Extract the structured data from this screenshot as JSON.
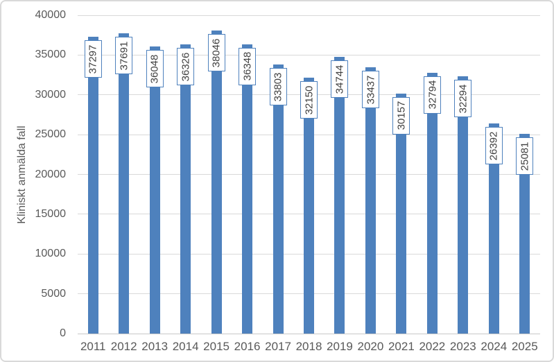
{
  "chart_data": {
    "type": "bar",
    "title": "",
    "xlabel": "",
    "ylabel": "Kliniskt anmälda fall",
    "categories": [
      "2011",
      "2012",
      "2013",
      "2014",
      "2015",
      "2016",
      "2017",
      "2018",
      "2019",
      "2020",
      "2021",
      "2022",
      "2023",
      "2024",
      "2025"
    ],
    "values": [
      37297,
      37691,
      36048,
      36326,
      38046,
      36348,
      33803,
      32150,
      34744,
      33437,
      30157,
      32794,
      32294,
      26392,
      25081
    ],
    "data_labels": [
      "37297",
      "37691",
      "36048",
      "36326",
      "38046",
      "36348",
      "33803",
      "32150",
      "34744",
      "33437",
      "30157",
      "32794",
      "32294",
      "26392",
      "25081"
    ],
    "ylim": [
      0,
      40000
    ],
    "yticks": [
      "0",
      "5000",
      "10000",
      "15000",
      "20000",
      "25000",
      "30000",
      "35000",
      "40000"
    ],
    "grid": true,
    "legend": "none",
    "data_label_style": "inside-end, rotated 90deg, white box with blue border",
    "colors": {
      "bar_fill": "#4E81BD",
      "label_box_fill": "#FFFFFF",
      "label_box_border": "#4E81BD",
      "label_text": "#404040",
      "axis_text": "#595959",
      "gridline": "#D9D9D9",
      "axis_line": "#C9C9C9",
      "chart_border": "#D9D9D9"
    }
  }
}
